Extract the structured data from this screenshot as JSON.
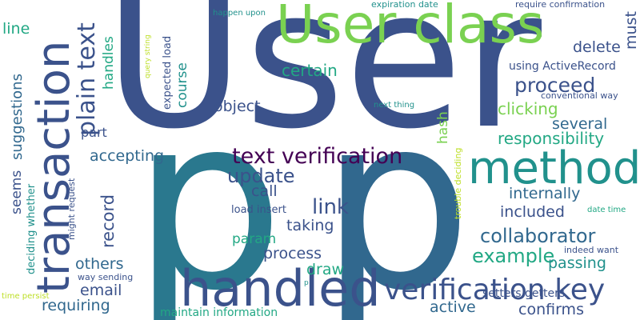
{
  "words": [
    {
      "text": "User",
      "color": "#3b528b"
    },
    {
      "text": "p",
      "color": "#2a788e"
    },
    {
      "text": "p",
      "color": "#31688e"
    },
    {
      "text": "User class",
      "color": "#7ad151"
    },
    {
      "text": "transaction",
      "color": "#3b528b"
    },
    {
      "text": "handled",
      "color": "#3b528b"
    },
    {
      "text": "method",
      "color": "#21918c"
    },
    {
      "text": "verification key",
      "color": "#3b528b"
    },
    {
      "text": "plain text",
      "color": "#3b528b"
    },
    {
      "text": "text verification",
      "color": "#440154"
    },
    {
      "text": "proceed",
      "color": "#3b528b"
    },
    {
      "text": "collaborator",
      "color": "#31688e"
    },
    {
      "text": "example",
      "color": "#22a884"
    },
    {
      "text": "responsibility",
      "color": "#22a884"
    },
    {
      "text": "update",
      "color": "#3b528b"
    },
    {
      "text": "certain",
      "color": "#22a884"
    },
    {
      "text": "link",
      "color": "#3b528b"
    },
    {
      "text": "clicking",
      "color": "#7ad151"
    },
    {
      "text": "several",
      "color": "#31688e"
    },
    {
      "text": "delete",
      "color": "#3b528b"
    },
    {
      "text": "record",
      "color": "#3b528b"
    },
    {
      "text": "suggestions",
      "color": "#31688e"
    },
    {
      "text": "handles",
      "color": "#22a884"
    },
    {
      "text": "course",
      "color": "#21918c"
    },
    {
      "text": "accepting",
      "color": "#31688e"
    },
    {
      "text": "object",
      "color": "#3b528b"
    },
    {
      "text": "internally",
      "color": "#31688e"
    },
    {
      "text": "included",
      "color": "#3b528b"
    },
    {
      "text": "process",
      "color": "#3b528b"
    },
    {
      "text": "passing",
      "color": "#21918c"
    },
    {
      "text": "taking",
      "color": "#3b528b"
    },
    {
      "text": "call",
      "color": "#3b528b"
    },
    {
      "text": "requiring",
      "color": "#31688e"
    },
    {
      "text": "confirms",
      "color": "#3b528b"
    },
    {
      "text": "active",
      "color": "#31688e"
    },
    {
      "text": "email",
      "color": "#3b528b"
    },
    {
      "text": "others",
      "color": "#31688e"
    },
    {
      "text": "draw",
      "color": "#22a884"
    },
    {
      "text": "param",
      "color": "#22a884"
    },
    {
      "text": "hash",
      "color": "#7ad151"
    },
    {
      "text": "seems",
      "color": "#3b528b"
    },
    {
      "text": "part",
      "color": "#3b528b"
    },
    {
      "text": "line",
      "color": "#22a884"
    },
    {
      "text": "must",
      "color": "#3b528b"
    },
    {
      "text": "using ActiveRecord",
      "color": "#3b528b"
    },
    {
      "text": "conventional way",
      "color": "#3b528b"
    },
    {
      "text": "expected load",
      "color": "#3b528b"
    },
    {
      "text": "maintain information",
      "color": "#22a884"
    },
    {
      "text": "setters getters",
      "color": "#3b528b"
    },
    {
      "text": "load insert",
      "color": "#3b528b"
    },
    {
      "text": "might request",
      "color": "#3b528b"
    },
    {
      "text": "deciding whether",
      "color": "#21918c"
    },
    {
      "text": "trouble deciding",
      "color": "#bddf26"
    },
    {
      "text": "indeed want",
      "color": "#3b528b"
    },
    {
      "text": "way sending",
      "color": "#3b528b"
    },
    {
      "text": "date time",
      "color": "#22a884"
    },
    {
      "text": "time persist",
      "color": "#bddf26"
    },
    {
      "text": "next thing",
      "color": "#21918c"
    },
    {
      "text": "expiration date",
      "color": "#21918c"
    },
    {
      "text": "require confirmation",
      "color": "#3b528b"
    },
    {
      "text": "happen upon",
      "color": "#21918c"
    },
    {
      "text": "query string",
      "color": "#bddf26"
    },
    {
      "text": "p",
      "color": "#21918c"
    }
  ]
}
